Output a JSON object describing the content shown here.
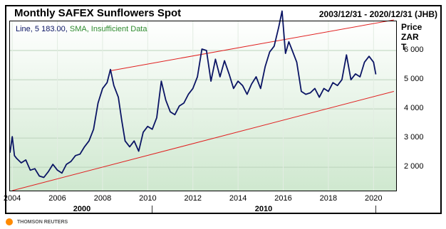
{
  "header": {
    "title": "Monthly SAFEX Sunflowers Spot",
    "range": "2003/12/31 - 2020/12/31 (JHB)"
  },
  "legend": {
    "line_label": "Line, 5 183.00,",
    "sma_label": "SMA, Insufficient Data"
  },
  "footer": {
    "brand": "THOMSON REUTERS"
  },
  "colors": {
    "series": "#0a1464",
    "channel": "#e02020",
    "plot_bg_top": "#ffffff",
    "plot_bg_bottom": "#cfe8cf",
    "sma": "#2e8b2e",
    "logo": "#ff8a00"
  },
  "chart_data": {
    "type": "line",
    "title": "Monthly SAFEX Sunflowers Spot",
    "subtitle": "2003/12/31 - 2020/12/31 (JHB)",
    "ylabel": "Price ZAR T",
    "ylabel_lines": [
      "Price",
      "ZAR",
      "T"
    ],
    "ylim": [
      1200,
      7000
    ],
    "xlim": [
      2003.9,
      2021.0
    ],
    "yticks": [
      2000,
      3000,
      4000,
      5000,
      6000
    ],
    "ytick_labels": [
      "2 000",
      "3 000",
      "4 000",
      "5 000",
      "6 000"
    ],
    "xticks": [
      2004,
      2006,
      2008,
      2010,
      2012,
      2014,
      2016,
      2018,
      2020
    ],
    "xtick_labels": [
      "2004",
      "2006",
      "2008",
      "2010",
      "2012",
      "2014",
      "2016",
      "2018",
      "2020"
    ],
    "decade_labels": [
      {
        "x": 2000,
        "label": "2000"
      },
      {
        "x": 2010,
        "label": "2010"
      }
    ],
    "grid": true,
    "legend": "top-left",
    "series": [
      {
        "name": "Line",
        "last": 5183,
        "x": [
          2003.9,
          2004.0,
          2004.1,
          2004.2,
          2004.4,
          2004.6,
          2004.8,
          2005.0,
          2005.2,
          2005.4,
          2005.6,
          2005.8,
          2006.0,
          2006.2,
          2006.4,
          2006.6,
          2006.8,
          2007.0,
          2007.2,
          2007.4,
          2007.6,
          2007.8,
          2008.0,
          2008.2,
          2008.35,
          2008.5,
          2008.7,
          2008.85,
          2009.0,
          2009.2,
          2009.4,
          2009.6,
          2009.8,
          2010.0,
          2010.2,
          2010.4,
          2010.6,
          2010.8,
          2011.0,
          2011.2,
          2011.4,
          2011.6,
          2011.8,
          2012.0,
          2012.2,
          2012.4,
          2012.6,
          2012.8,
          2013.0,
          2013.2,
          2013.4,
          2013.6,
          2013.8,
          2014.0,
          2014.2,
          2014.4,
          2014.6,
          2014.8,
          2015.0,
          2015.2,
          2015.4,
          2015.6,
          2015.8,
          2015.95,
          2016.1,
          2016.25,
          2016.4,
          2016.6,
          2016.8,
          2017.0,
          2017.2,
          2017.4,
          2017.6,
          2017.8,
          2018.0,
          2018.2,
          2018.4,
          2018.6,
          2018.8,
          2019.0,
          2019.2,
          2019.4,
          2019.6,
          2019.8,
          2020.0,
          2020.1
        ],
        "values": [
          2500,
          3050,
          2400,
          2300,
          2150,
          2250,
          1900,
          1950,
          1700,
          1650,
          1850,
          2100,
          1900,
          1800,
          2100,
          2200,
          2400,
          2450,
          2700,
          2900,
          3300,
          4200,
          4700,
          4900,
          5350,
          4800,
          4400,
          3600,
          2900,
          2700,
          2900,
          2550,
          3200,
          3400,
          3300,
          3700,
          4950,
          4300,
          3900,
          3800,
          4100,
          4200,
          4500,
          4700,
          5100,
          6050,
          6000,
          4950,
          5700,
          5100,
          5650,
          5200,
          4700,
          4950,
          4800,
          4500,
          4850,
          5100,
          4700,
          5450,
          5950,
          6150,
          6800,
          7350,
          5900,
          6300,
          6000,
          5600,
          4600,
          4500,
          4550,
          4700,
          4400,
          4700,
          4600,
          4900,
          4800,
          5000,
          5850,
          5000,
          5200,
          5100,
          5600,
          5800,
          5600,
          5183
        ]
      }
    ],
    "trendlines": [
      {
        "name": "upper channel",
        "x": [
          2008.3,
          2020.9
        ],
        "values": [
          5300,
          7050
        ]
      },
      {
        "name": "lower channel",
        "x": [
          2004.0,
          2020.9
        ],
        "values": [
          1200,
          4600
        ]
      }
    ]
  }
}
